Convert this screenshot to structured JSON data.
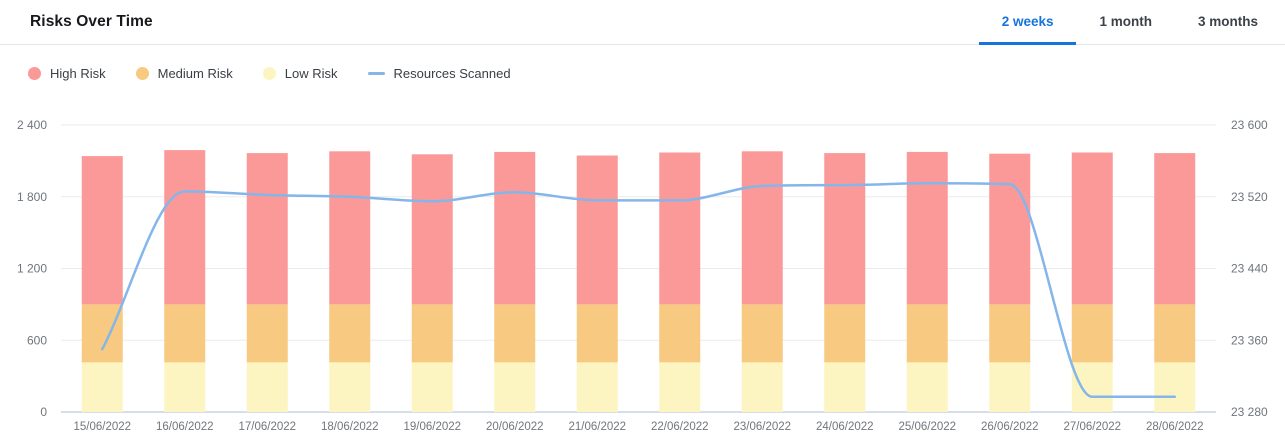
{
  "header": {
    "title": "Risks Over Time",
    "tabs": [
      {
        "label": "2 weeks",
        "active": true
      },
      {
        "label": "1 month",
        "active": false
      },
      {
        "label": "3 months",
        "active": false
      }
    ]
  },
  "legend": [
    {
      "label": "High Risk",
      "marker": "dot",
      "color": "#FB9999"
    },
    {
      "label": "Medium Risk",
      "marker": "dot",
      "color": "#F8C981"
    },
    {
      "label": "Low Risk",
      "marker": "dot",
      "color": "#FDF5C1"
    },
    {
      "label": "Resources Scanned",
      "marker": "line",
      "color": "#84B6E9"
    }
  ],
  "colors": {
    "accent_blue": "#1774db",
    "grid_line": "#eaebed",
    "baseline": "#c9d4e8",
    "axis_text": "#6f757c"
  },
  "chart_data": {
    "type": "bar",
    "subtype": "stacked-bars-with-right-axis-line",
    "title": "Risks Over Time",
    "grid": "horizontal",
    "legend_position": "top-left",
    "categories": [
      "15/06/2022",
      "16/06/2022",
      "17/06/2022",
      "18/06/2022",
      "19/06/2022",
      "20/06/2022",
      "21/06/2022",
      "22/06/2022",
      "23/06/2022",
      "24/06/2022",
      "25/06/2022",
      "26/06/2022",
      "27/06/2022",
      "28/06/2022"
    ],
    "series": [
      {
        "name": "High Risk",
        "type": "bar",
        "axis": "left",
        "color": "#FB9999",
        "values": [
          1240,
          1290,
          1265,
          1280,
          1255,
          1275,
          1245,
          1270,
          1280,
          1265,
          1275,
          1260,
          1270,
          1265
        ]
      },
      {
        "name": "Medium Risk",
        "type": "bar",
        "axis": "left",
        "color": "#F8C981",
        "values": [
          485,
          485,
          485,
          485,
          485,
          485,
          485,
          485,
          485,
          485,
          485,
          485,
          485,
          485
        ]
      },
      {
        "name": "Low Risk",
        "type": "bar",
        "axis": "left",
        "color": "#FDF5C1",
        "values": [
          415,
          415,
          415,
          415,
          415,
          415,
          415,
          415,
          415,
          415,
          415,
          415,
          415,
          415
        ]
      },
      {
        "name": "Resources Scanned",
        "type": "line",
        "axis": "right",
        "color": "#84B6E9",
        "values": [
          23350,
          23526,
          23522,
          23520,
          23515,
          23525,
          23516,
          23516,
          23532,
          23533,
          23535,
          23534,
          23297,
          23297
        ]
      }
    ],
    "left_axis": {
      "ticks": [
        0,
        600,
        1200,
        1800,
        2400
      ],
      "range": [
        0,
        2400
      ]
    },
    "right_axis": {
      "ticks": [
        23280,
        23360,
        23440,
        23520,
        23600
      ],
      "range": [
        23280,
        23600
      ],
      "tick_format": "space-thousands"
    }
  }
}
